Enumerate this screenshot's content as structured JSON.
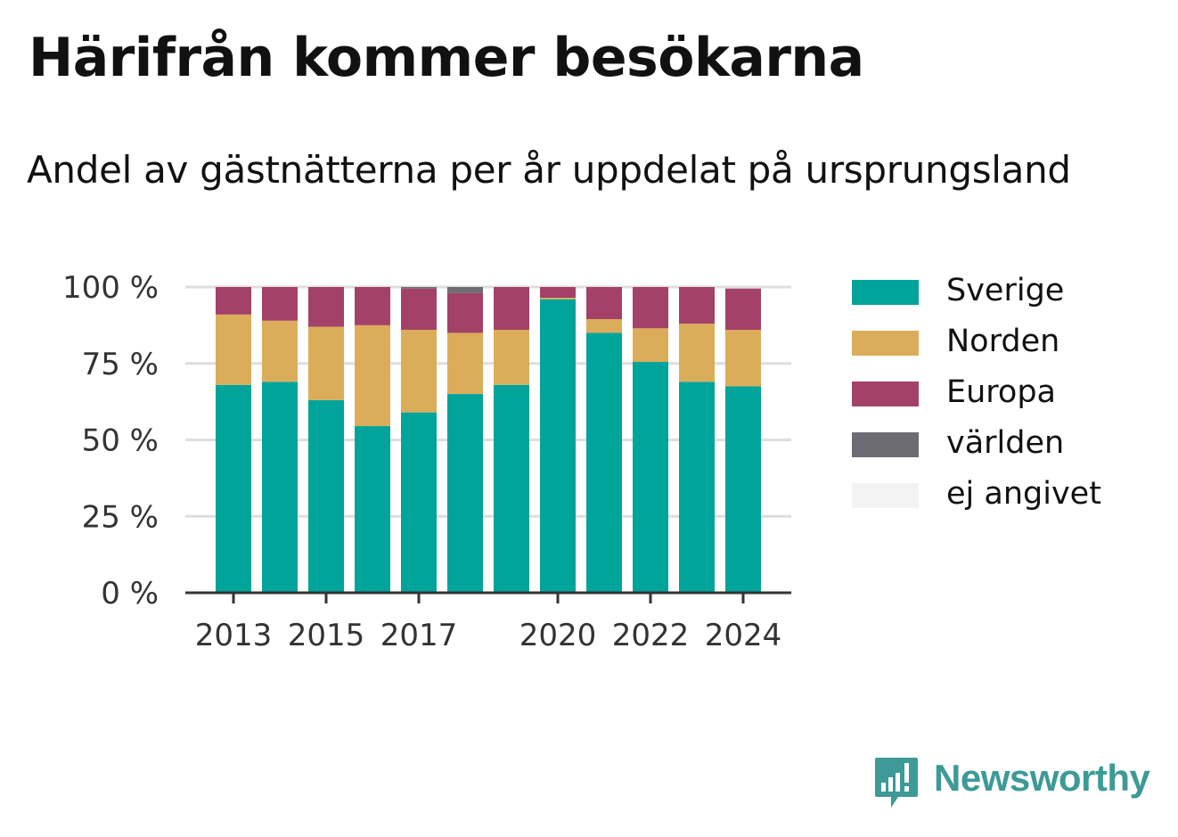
{
  "title": "Härifrån kommer besökarna",
  "subtitle": "Andel av gästnätterna per år uppdelat på ursprungsland",
  "brand": "Newsworthy",
  "colors": {
    "Sverige": "#00a49a",
    "Norden": "#dbad5a",
    "Europa": "#a44168",
    "världen": "#6d6c74",
    "ej angivet": "#f3f3f3"
  },
  "chart_data": {
    "type": "bar",
    "stacked": true,
    "categories": [
      "2013",
      "2014",
      "2015",
      "2016",
      "2017",
      "2018",
      "2019",
      "2020",
      "2021",
      "2022",
      "2023",
      "2024"
    ],
    "x_tick_labels": [
      "2013",
      "2015",
      "2017",
      "2020",
      "2022",
      "2024"
    ],
    "y_tick_labels": [
      "0 %",
      "25 %",
      "50 %",
      "75 %",
      "100 %"
    ],
    "ylim": [
      0,
      100
    ],
    "grid": true,
    "legend_position": "right",
    "series": [
      {
        "name": "Sverige",
        "values": [
          68,
          69,
          63,
          54.5,
          59,
          65,
          68,
          96,
          85,
          75.5,
          69,
          67.5
        ]
      },
      {
        "name": "Norden",
        "values": [
          23,
          20,
          24,
          33,
          27,
          20,
          18,
          0.5,
          4.5,
          11,
          19,
          18.5
        ]
      },
      {
        "name": "Europa",
        "values": [
          9,
          11,
          13,
          12.5,
          13.5,
          13,
          14,
          3.5,
          10.5,
          13.5,
          12,
          13.5
        ]
      },
      {
        "name": "världen",
        "values": [
          0,
          0,
          0,
          0,
          0.5,
          2,
          0,
          0,
          0,
          0,
          0,
          0
        ]
      },
      {
        "name": "ej angivet",
        "values": [
          0,
          0,
          0,
          0,
          0,
          0,
          0,
          0,
          0,
          0,
          0,
          0
        ]
      }
    ]
  }
}
